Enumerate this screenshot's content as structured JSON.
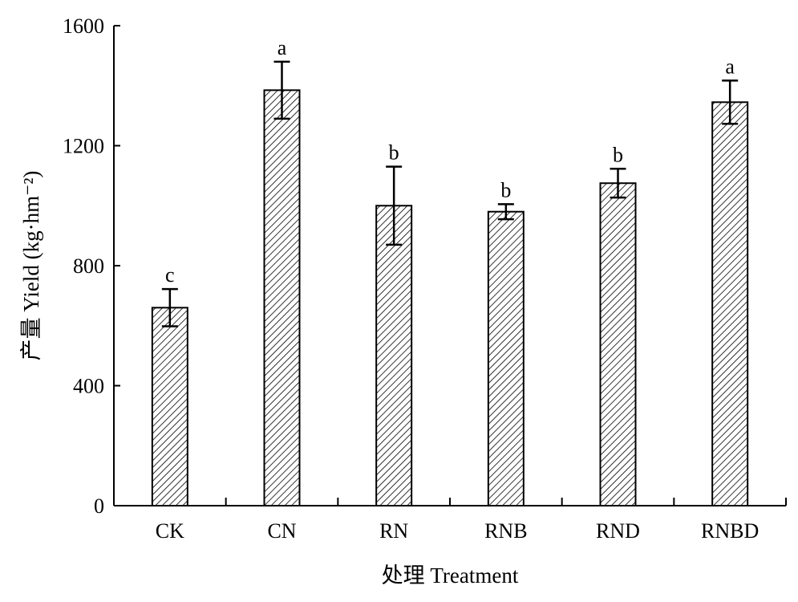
{
  "chart_data": {
    "type": "bar",
    "categories": [
      "CK",
      "CN",
      "RN",
      "RNB",
      "RND",
      "RNBD"
    ],
    "values": [
      660,
      1385,
      1000,
      980,
      1075,
      1345
    ],
    "errors": [
      62,
      95,
      130,
      25,
      48,
      72
    ],
    "significance": [
      "c",
      "a",
      "b",
      "b",
      "b",
      "a"
    ],
    "xlabel": "处理 Treatment",
    "ylabel": "产量 Yield (kg·hm⁻²)",
    "ylim": [
      0,
      1600
    ],
    "yticks": [
      "0",
      "400",
      "800",
      "1200",
      "1600"
    ],
    "bar_pattern": "diagonal-hatch",
    "grid": false,
    "legend": "none"
  }
}
